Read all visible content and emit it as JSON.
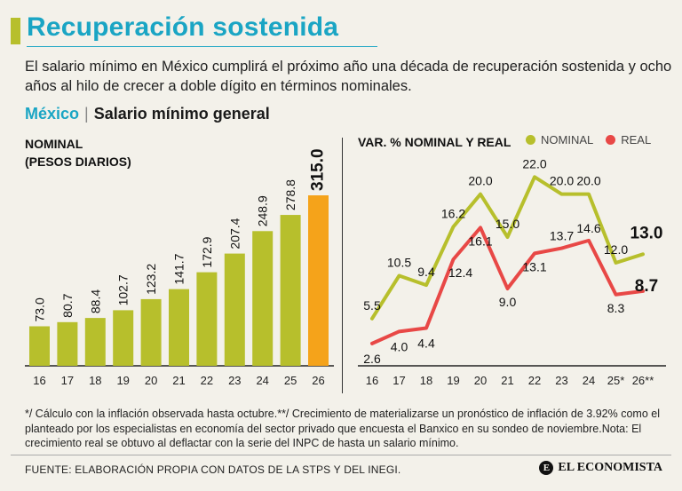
{
  "header": {
    "title": "Recuperación sostenida",
    "subtitle": "El salario mínimo en México cumplirá el próximo año una década de recuperación sostenida y ocho años al hilo de crecer a doble dígito en términos nominales."
  },
  "section": {
    "country": "México",
    "separator": "|",
    "name": "Salario mínimo general"
  },
  "left_panel": {
    "title_line1": "NOMINAL",
    "title_line2": "(PESOS DIARIOS)"
  },
  "right_panel": {
    "title": "VAR. % NOMINAL Y REAL",
    "legend_nominal": "NOMINAL",
    "legend_real": "REAL"
  },
  "colors": {
    "bar": "#b7bf2c",
    "bar_highlight": "#f5a31a",
    "nominal": "#b7bf2c",
    "real": "#e84846",
    "accent": "#1aa5c4"
  },
  "chart_data": [
    {
      "type": "bar",
      "title": "NOMINAL (PESOS DIARIOS)",
      "categories": [
        "16",
        "17",
        "18",
        "19",
        "20",
        "21",
        "22",
        "23",
        "24",
        "25",
        "26"
      ],
      "values": [
        73.0,
        80.7,
        88.4,
        102.7,
        123.2,
        141.7,
        172.9,
        207.4,
        248.9,
        278.8,
        315.0
      ],
      "value_labels": [
        "73.0",
        "80.7",
        "88.4",
        "102.7",
        "123.2",
        "141.7",
        "172.9",
        "207.4",
        "248.9",
        "278.8",
        "315.0"
      ],
      "highlight_index": 10,
      "ylim": [
        0,
        315
      ]
    },
    {
      "type": "line",
      "title": "VAR. % NOMINAL Y REAL",
      "categories": [
        "16",
        "17",
        "18",
        "19",
        "20",
        "21",
        "22",
        "23",
        "24",
        "25*",
        "26**"
      ],
      "series": [
        {
          "name": "NOMINAL",
          "values": [
            5.5,
            10.5,
            9.4,
            16.2,
            20.0,
            15.0,
            22.0,
            20.0,
            20.0,
            12.0,
            13.0
          ],
          "labels": [
            "5.5",
            "10.5",
            "9.4",
            "16.2",
            "20.0",
            "15.0",
            "22.0",
            "20.0",
            "20.0",
            "12.0",
            "13.0"
          ]
        },
        {
          "name": "REAL",
          "values": [
            2.6,
            4.0,
            4.4,
            12.4,
            16.1,
            9.0,
            13.1,
            13.7,
            14.6,
            8.3,
            8.7
          ],
          "labels": [
            "2.6",
            "4.0",
            "4.4",
            "12.4",
            "16.1",
            "9.0",
            "13.1",
            "13.7",
            "14.6",
            "8.3",
            "8.7"
          ]
        }
      ],
      "ylim": [
        0,
        24
      ]
    }
  ],
  "footer": {
    "footnote": "*/ Cálculo con la inflación observada hasta octubre.**/ Crecimiento de materializarse un pronóstico de inflación de 3.92% como el planteado por los especialistas en economía del sector privado que encuesta el Banxico en su sondeo de noviembre.Nota: El crecimiento real se obtuvo al deflactar con la serie del INPC de hasta un salario mínimo.",
    "source": "FUENTE: ELABORACIÓN PROPIA CON DATOS DE LA STPS Y DEL INEGI.",
    "brand": "EL ECONOMISTA",
    "brand_mark": "E"
  }
}
